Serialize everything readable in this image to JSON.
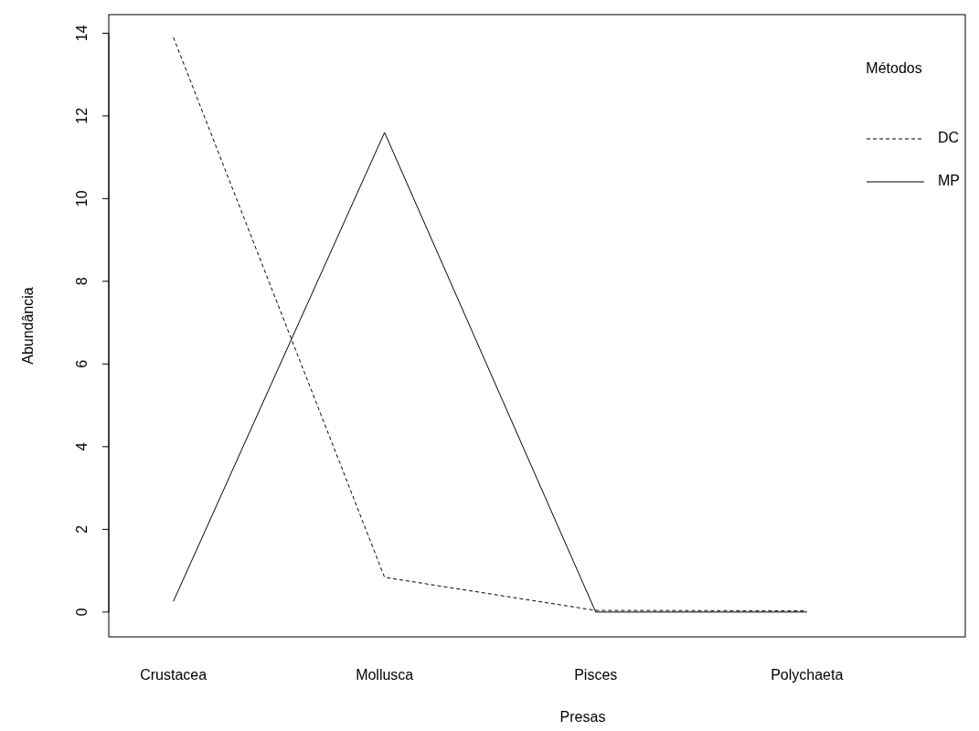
{
  "chart_data": {
    "type": "line",
    "xlabel": "Presas",
    "ylabel": "Abundância",
    "legend_title": "Métodos",
    "legend": "top right",
    "categories": [
      "Crustacea",
      "Mollusca",
      "Pisces",
      "Polychaeta"
    ],
    "series": [
      {
        "name": "DC",
        "color": "#000000",
        "line_style": "dashed",
        "values": [
          13.9,
          0.84,
          0.04,
          0.03
        ]
      },
      {
        "name": "MP",
        "color": "#000000",
        "line_style": "solid",
        "values": [
          0.26,
          11.6,
          0,
          0
        ]
      }
    ],
    "ylim": [
      -0.6,
      14.45
    ],
    "yticks": [
      0,
      2,
      4,
      6,
      8,
      10,
      12,
      14
    ]
  }
}
